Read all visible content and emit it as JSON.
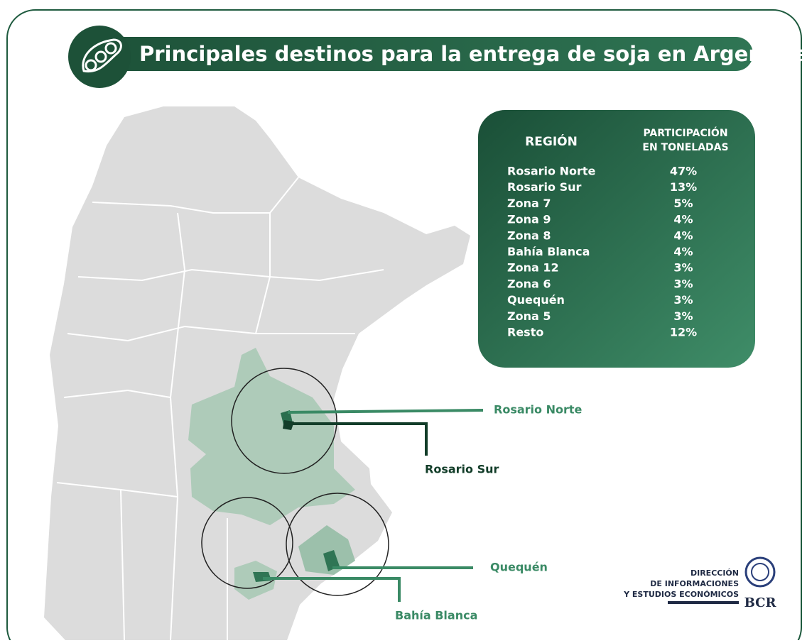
{
  "title": "Principales destinos para la entrega de soja en Argentina",
  "table": {
    "headers": [
      "REGIÓN",
      [
        "PARTICIPACIÓN",
        "EN TONELADAS"
      ]
    ],
    "rows": [
      [
        "Rosario Norte",
        "47%"
      ],
      [
        "Rosario Sur",
        "13%"
      ],
      [
        "Zona 7",
        "5%"
      ],
      [
        "Zona 9",
        "4%"
      ],
      [
        "Zona 8",
        "4%"
      ],
      [
        "Bahía Blanca",
        "4%"
      ],
      [
        "Zona 12",
        "3%"
      ],
      [
        "Zona 6",
        "3%"
      ],
      [
        "Quequén",
        "3%"
      ],
      [
        "Zona 5",
        "3%"
      ],
      [
        "Resto",
        "12%"
      ]
    ]
  },
  "map_labels": [
    "Rosario Norte",
    "Rosario Sur",
    "Quequén",
    "Bahía Blanca"
  ],
  "logo": {
    "lines": [
      "DIRECCIÓN",
      "DE INFORMACIONES",
      "Y ESTUDIOS ECONÓMICOS"
    ],
    "brand": "BCR"
  }
}
